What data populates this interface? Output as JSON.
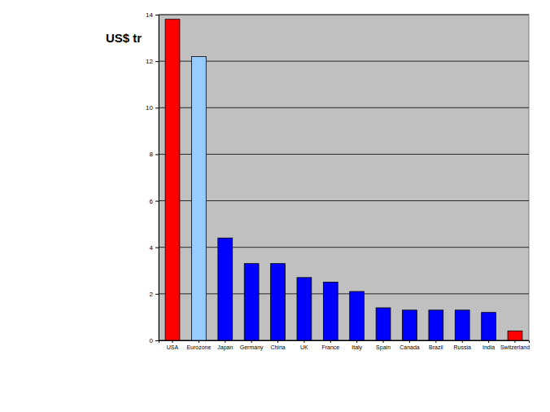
{
  "chart_data": {
    "type": "bar",
    "y_label": "US$ tr",
    "categories": [
      "USA",
      "Eurozone",
      "Japan",
      "Germany",
      "China",
      "UK",
      "France",
      "Italy",
      "Spain",
      "Canada",
      "Brazil",
      "Russia",
      "India",
      "Switzerland"
    ],
    "values": [
      13.8,
      12.2,
      4.4,
      3.3,
      3.3,
      2.7,
      2.5,
      2.1,
      1.4,
      1.3,
      1.3,
      1.3,
      1.2,
      0.4
    ],
    "colors": [
      "#ff0000",
      "#99ccff",
      "#0000ff",
      "#0000ff",
      "#0000ff",
      "#0000ff",
      "#0000ff",
      "#0000ff",
      "#0000ff",
      "#0000ff",
      "#0000ff",
      "#0000ff",
      "#0000ff",
      "#ff0000"
    ],
    "ylim": [
      0,
      14
    ],
    "yticks": [
      0,
      2,
      4,
      6,
      8,
      10,
      12,
      14
    ],
    "grid": true
  }
}
